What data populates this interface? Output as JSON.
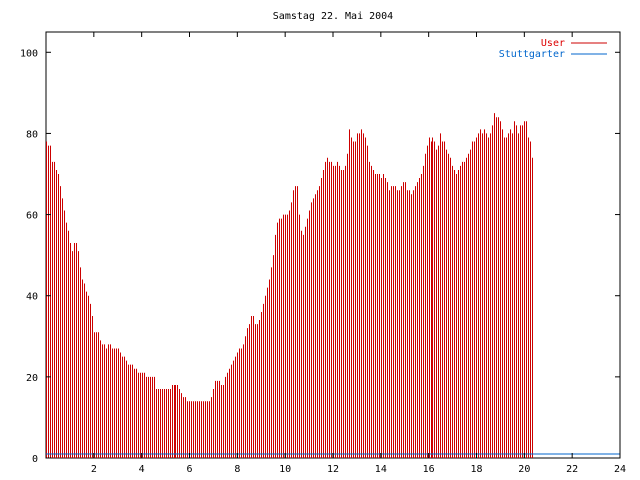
{
  "chart_data": {
    "type": "bar",
    "title": "Samstag 22. Mai 2004",
    "xlabel": "",
    "ylabel": "",
    "xlim": [
      0,
      24
    ],
    "ylim": [
      0,
      105
    ],
    "x_ticks": [
      2,
      4,
      6,
      8,
      10,
      12,
      14,
      16,
      18,
      20,
      22,
      24
    ],
    "x_tick_labels": [
      "2",
      "4",
      "6",
      "8",
      "10",
      "12",
      "14",
      "16",
      "18",
      "20",
      "22",
      "24"
    ],
    "y_ticks": [
      0,
      20,
      40,
      60,
      80,
      100
    ],
    "y_tick_labels": [
      "0",
      "20",
      "40",
      "60",
      "80",
      "100"
    ],
    "grid": false,
    "legend_position": "top-right",
    "series": [
      {
        "name": "User",
        "color": "#cc0000",
        "x_start": 0,
        "x_step": 0.0833,
        "values": [
          78,
          77,
          77,
          73,
          73,
          71,
          70,
          67,
          64,
          61,
          58,
          56,
          53,
          51,
          53,
          53,
          51,
          47,
          44,
          43,
          41,
          40,
          38,
          35,
          31,
          31,
          31,
          29,
          28,
          28,
          27,
          28,
          28,
          27,
          27,
          27,
          27,
          26,
          25,
          25,
          24,
          23,
          23,
          23,
          22,
          22,
          21,
          21,
          21,
          21,
          20,
          20,
          20,
          20,
          20,
          17,
          17,
          17,
          17,
          17,
          17,
          17,
          17,
          18,
          18,
          18,
          18,
          17,
          16,
          15,
          15,
          14,
          14,
          14,
          14,
          14,
          14,
          14,
          14,
          14,
          14,
          14,
          14,
          15,
          17,
          19,
          19,
          19,
          18,
          18,
          20,
          21,
          22,
          23,
          24,
          25,
          26,
          27,
          27,
          28,
          30,
          32,
          33,
          35,
          35,
          33,
          33,
          34,
          36,
          38,
          40,
          42,
          44,
          47,
          50,
          55,
          58,
          59,
          59,
          60,
          60,
          60,
          61,
          63,
          66,
          67,
          67,
          60,
          56,
          55,
          57,
          59,
          61,
          63,
          64,
          65,
          66,
          67,
          69,
          71,
          73,
          74,
          73,
          73,
          72,
          72,
          73,
          72,
          71,
          71,
          72,
          75,
          81,
          79,
          78,
          78,
          80,
          80,
          81,
          80,
          79,
          77,
          73,
          72,
          71,
          70,
          70,
          70,
          69,
          70,
          69,
          68,
          66,
          67,
          67,
          67,
          66,
          66,
          67,
          68,
          68,
          66,
          66,
          65,
          66,
          67,
          68,
          69,
          70,
          72,
          75,
          77,
          79,
          78,
          79,
          78,
          76,
          77,
          80,
          78,
          78,
          76,
          75,
          74,
          72,
          71,
          70,
          71,
          72,
          73,
          73,
          74,
          75,
          76,
          78,
          78,
          79,
          80,
          81,
          80,
          81,
          80,
          79,
          80,
          82,
          85,
          84,
          84,
          83,
          81,
          79,
          79,
          80,
          81,
          80,
          83,
          82,
          80,
          82,
          82,
          83,
          83,
          79,
          78,
          74
        ]
      },
      {
        "name": "Stuttgarter",
        "color": "#0066cc",
        "values": [
          1,
          1
        ]
      }
    ]
  }
}
